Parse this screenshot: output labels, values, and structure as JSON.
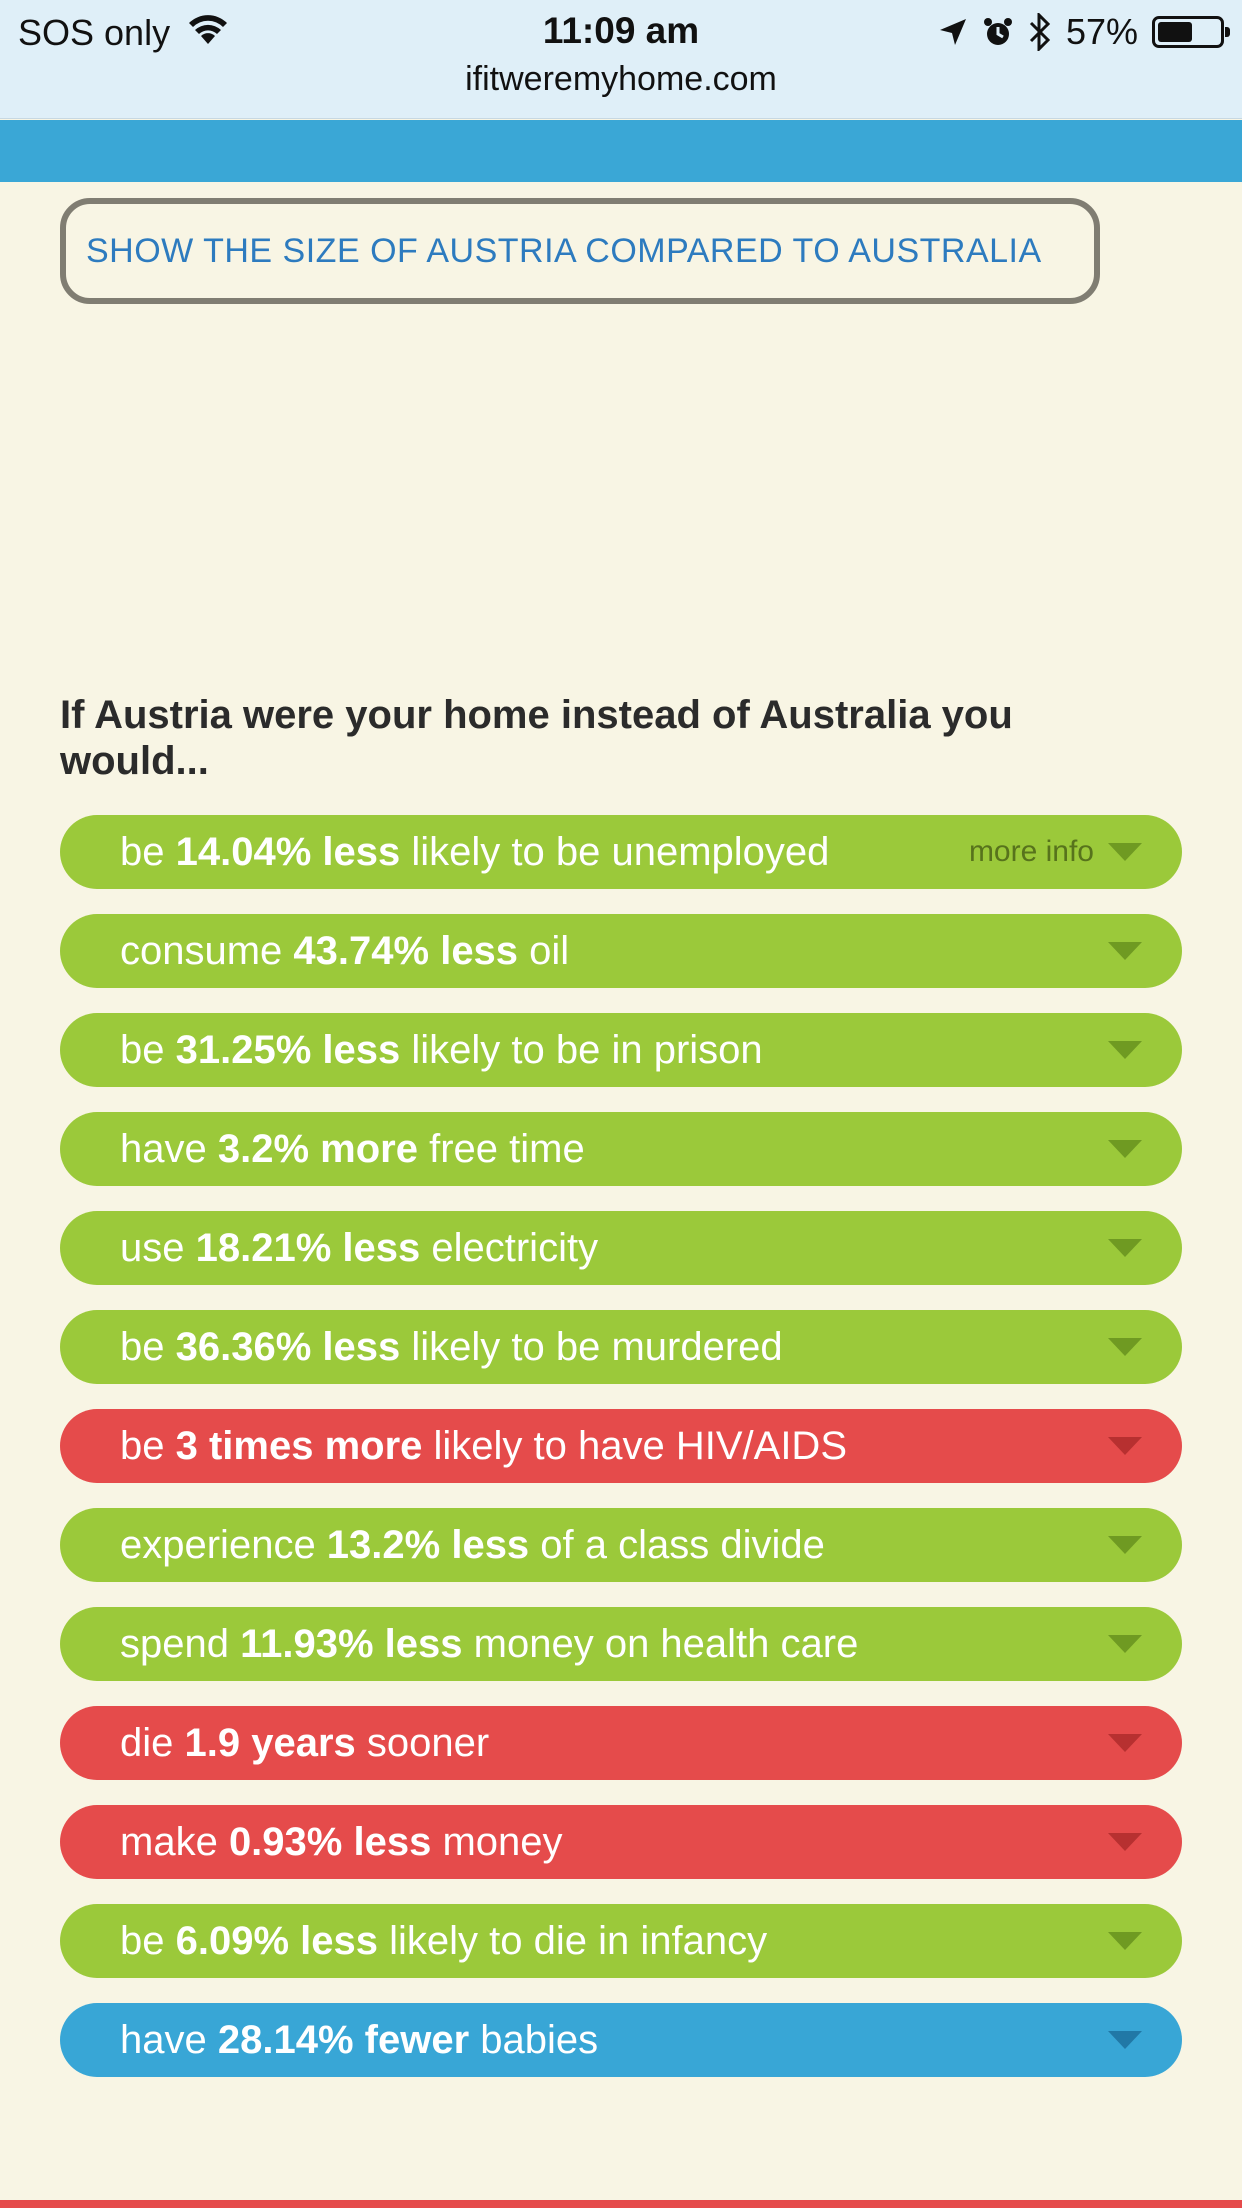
{
  "status_bar": {
    "carrier": "SOS only",
    "time": "11:09 am",
    "battery": "57%",
    "battery_level": 0.57,
    "icons": [
      "wifi-icon",
      "location-arrow-icon",
      "alarm-icon",
      "bluetooth-icon",
      "battery-icon"
    ]
  },
  "browser": {
    "url": "ifitweremyhome.com"
  },
  "compare_button": {
    "label": "SHOW THE SIZE OF AUSTRIA COMPARED TO AUSTRALIA"
  },
  "intro": "If Austria were your home instead of Australia you would...",
  "more_info": "more info",
  "colors": {
    "good": "#9bc93a",
    "bad": "#e54b4b",
    "neutral": "#38a6d6",
    "header_band": "#3aa7d6"
  },
  "facts": [
    {
      "pre": "be ",
      "bold": "14.04% less",
      "post": " likely to be unemployed",
      "tone": "good"
    },
    {
      "pre": "consume ",
      "bold": "43.74% less",
      "post": " oil",
      "tone": "good"
    },
    {
      "pre": "be ",
      "bold": "31.25% less",
      "post": " likely to be in prison",
      "tone": "good"
    },
    {
      "pre": "have ",
      "bold": "3.2% more",
      "post": " free time",
      "tone": "good"
    },
    {
      "pre": "use ",
      "bold": "18.21% less",
      "post": " electricity",
      "tone": "good"
    },
    {
      "pre": "be ",
      "bold": "36.36% less",
      "post": " likely to be murdered",
      "tone": "good"
    },
    {
      "pre": "be ",
      "bold": "3 times more",
      "post": " likely to have HIV/AIDS",
      "tone": "bad"
    },
    {
      "pre": "experience ",
      "bold": "13.2% less",
      "post": " of a class divide",
      "tone": "good"
    },
    {
      "pre": "spend ",
      "bold": "11.93% less",
      "post": " money on health care",
      "tone": "good"
    },
    {
      "pre": "die ",
      "bold": "1.9 years",
      "post": " sooner",
      "tone": "bad"
    },
    {
      "pre": "make ",
      "bold": "0.93% less",
      "post": " money",
      "tone": "bad"
    },
    {
      "pre": "be ",
      "bold": "6.09% less",
      "post": " likely to die in infancy",
      "tone": "good"
    },
    {
      "pre": "have ",
      "bold": "28.14% fewer",
      "post": " babies",
      "tone": "neutral"
    }
  ]
}
